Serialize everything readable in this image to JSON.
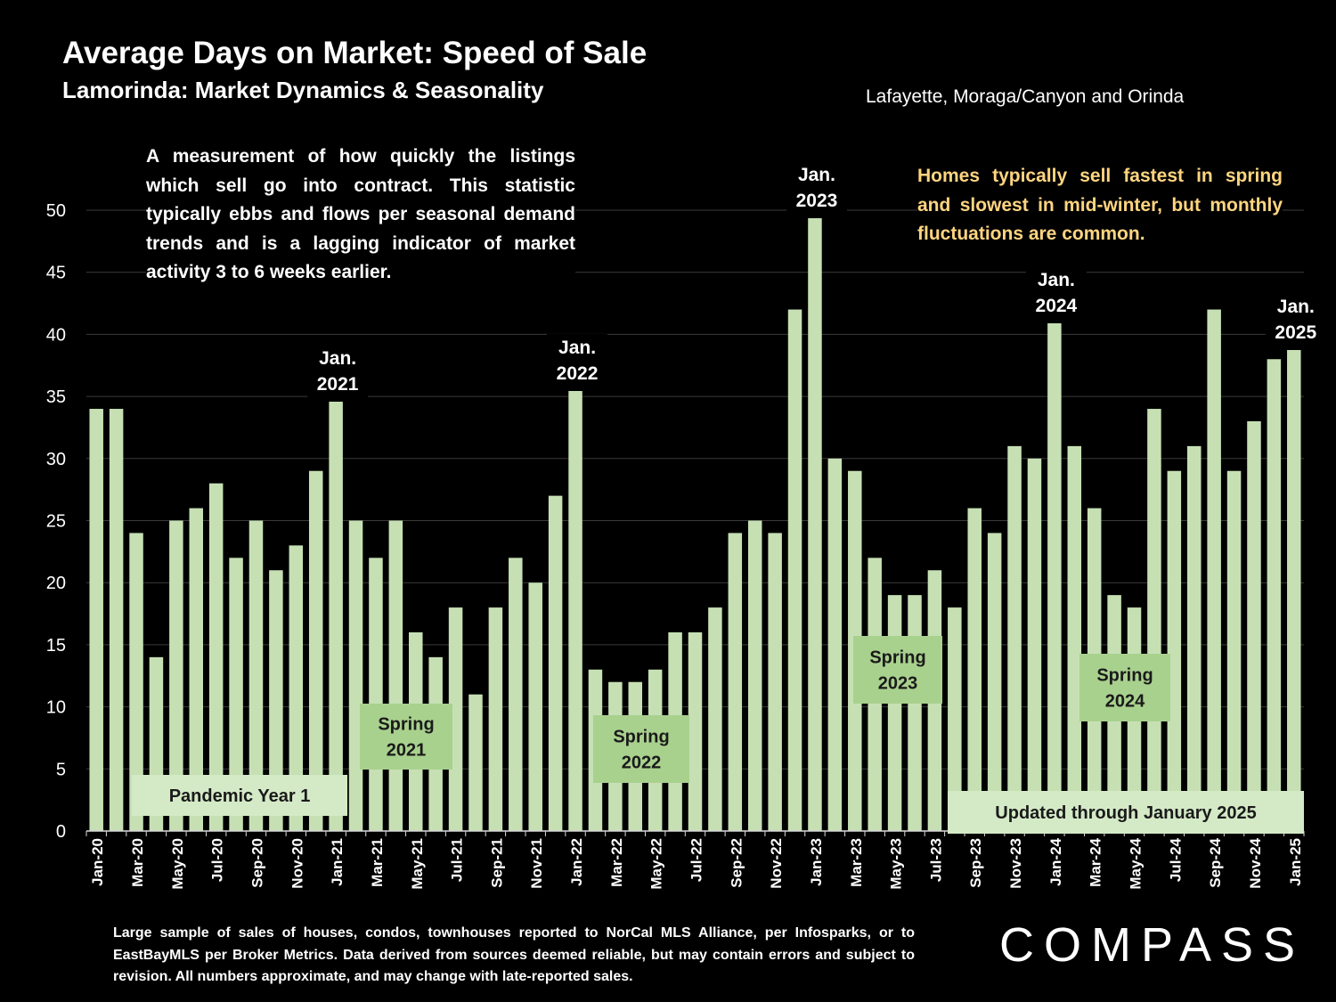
{
  "title": "Average Days on Market:  Speed of Sale",
  "subtitle": "Lamorinda: Market Dynamics & Seasonality",
  "region": "Lafayette, Moraga/Canyon and Orinda",
  "description": "A measurement of how quickly the listings which sell go into contract. This statistic typically ebbs and flows per seasonal demand trends and is a lagging indicator of market activity 3 to 6 weeks earlier.",
  "note": "Homes typically sell fastest in spring and slowest in mid-winter, but monthly fluctuations are common.",
  "footer": "Large sample of sales of houses, condos, townhouses reported to NorCal MLS Alliance, per Infosparks, or to EastBayMLS per Broker Metrics. Data derived from sources deemed reliable, but may contain errors and subject to revision. All numbers approximate, and may change with late-reported sales.",
  "logo": "COMPASS",
  "colors": {
    "bar": "#c6e0b4",
    "box_light": "#d4eac7",
    "box_green": "#a9d18e",
    "note_text": "#ffd580",
    "background": "#000000"
  },
  "chart_data": {
    "type": "bar",
    "categories": [
      "Jan-20",
      "Feb-20",
      "Mar-20",
      "Apr-20",
      "May-20",
      "Jun-20",
      "Jul-20",
      "Aug-20",
      "Sep-20",
      "Oct-20",
      "Nov-20",
      "Dec-20",
      "Jan-21",
      "Feb-21",
      "Mar-21",
      "Apr-21",
      "May-21",
      "Jun-21",
      "Jul-21",
      "Aug-21",
      "Sep-21",
      "Oct-21",
      "Nov-21",
      "Dec-21",
      "Jan-22",
      "Feb-22",
      "Mar-22",
      "Apr-22",
      "May-22",
      "Jun-22",
      "Jul-22",
      "Aug-22",
      "Sep-22",
      "Oct-22",
      "Nov-22",
      "Dec-22",
      "Jan-23",
      "Feb-23",
      "Mar-23",
      "Apr-23",
      "May-23",
      "Jun-23",
      "Jul-23",
      "Aug-23",
      "Sep-23",
      "Oct-23",
      "Nov-23",
      "Dec-23",
      "Jan-24",
      "Feb-24",
      "Mar-24",
      "Apr-24",
      "May-24",
      "Jun-24",
      "Jul-24",
      "Aug-24",
      "Sep-24",
      "Oct-24",
      "Nov-24",
      "Dec-24",
      "Jan-25"
    ],
    "values": [
      34,
      34,
      24,
      14,
      25,
      26,
      28,
      22,
      25,
      21,
      23,
      29,
      35,
      25,
      22,
      25,
      16,
      14,
      18,
      11,
      18,
      22,
      20,
      27,
      36,
      13,
      12,
      12,
      13,
      16,
      16,
      18,
      24,
      25,
      24,
      42,
      50,
      30,
      29,
      22,
      19,
      19,
      21,
      18,
      26,
      24,
      31,
      30,
      41,
      31,
      26,
      19,
      18,
      34,
      29,
      31,
      42,
      29,
      33,
      38,
      39
    ],
    "yticks": [
      0,
      5,
      10,
      15,
      20,
      25,
      30,
      35,
      40,
      45,
      50
    ],
    "ylim": [
      0,
      50
    ],
    "grid": true,
    "annotations": [
      {
        "id": "jan-2021",
        "lines": [
          "Jan.",
          "2021"
        ],
        "category": "Jan-21"
      },
      {
        "id": "jan-2022",
        "lines": [
          "Jan.",
          "2022"
        ],
        "category": "Jan-22"
      },
      {
        "id": "jan-2023",
        "lines": [
          "Jan.",
          "2023"
        ],
        "category": "Jan-23"
      },
      {
        "id": "jan-2024",
        "lines": [
          "Jan.",
          "2024"
        ],
        "category": "Jan-24"
      },
      {
        "id": "jan-2025",
        "lines": [
          "Jan.",
          "2025"
        ],
        "category": "Jan-25"
      }
    ],
    "boxes": [
      {
        "id": "pandemic-year-1",
        "lines": [
          "Pandemic Year 1"
        ],
        "style": "light"
      },
      {
        "id": "spring-2021",
        "lines": [
          "Spring",
          "2021"
        ],
        "style": "green"
      },
      {
        "id": "spring-2022",
        "lines": [
          "Spring",
          "2022"
        ],
        "style": "green"
      },
      {
        "id": "spring-2023",
        "lines": [
          "Spring",
          "2023"
        ],
        "style": "green"
      },
      {
        "id": "spring-2024",
        "lines": [
          "Spring",
          "2024"
        ],
        "style": "green"
      },
      {
        "id": "updated",
        "lines": [
          "Updated through January 2025"
        ],
        "style": "light"
      }
    ]
  }
}
